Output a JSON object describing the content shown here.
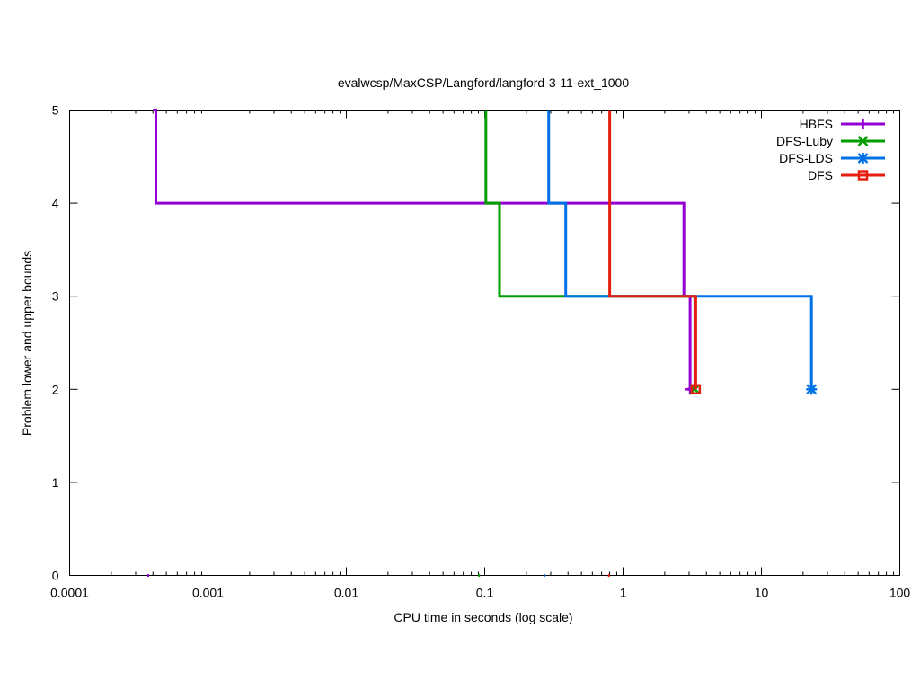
{
  "chart_data": {
    "type": "line",
    "title": "evalwcsp/MaxCSP/Langford/langford-3-11-ext_1000",
    "xlabel": "CPU time in seconds (log scale)",
    "ylabel": "Problem lower and upper bounds",
    "x_scale": "log",
    "xlim": [
      0.0001,
      100
    ],
    "ylim": [
      0,
      5
    ],
    "x_ticks": [
      {
        "value": 0.0001,
        "label": "0.0001"
      },
      {
        "value": 0.001,
        "label": "0.001"
      },
      {
        "value": 0.01,
        "label": "0.01"
      },
      {
        "value": 0.1,
        "label": "0.1"
      },
      {
        "value": 1,
        "label": "1"
      },
      {
        "value": 10,
        "label": "10"
      },
      {
        "value": 100,
        "label": "100"
      }
    ],
    "y_ticks": [
      {
        "value": 0,
        "label": "0"
      },
      {
        "value": 1,
        "label": "1"
      },
      {
        "value": 2,
        "label": "2"
      },
      {
        "value": 3,
        "label": "3"
      },
      {
        "value": 4,
        "label": "4"
      },
      {
        "value": 5,
        "label": "5"
      }
    ],
    "grid": false,
    "legend_position": "top-right",
    "series": [
      {
        "name": "HBFS",
        "color": "#9400d3",
        "marker": "plus",
        "upper_bound": [
          [
            0.0004,
            5
          ],
          [
            0.00042,
            5
          ],
          [
            0.00042,
            4
          ],
          [
            2.75,
            4
          ],
          [
            2.75,
            3
          ],
          [
            3.05,
            3
          ],
          [
            3.05,
            2
          ],
          [
            2.9,
            2
          ]
        ],
        "lower_bound_x": 0.00037,
        "end_point": [
          3.05,
          2
        ]
      },
      {
        "name": "DFS-Luby",
        "color": "#009e00",
        "marker": "cross",
        "upper_bound": [
          [
            0.102,
            5
          ],
          [
            0.102,
            4
          ],
          [
            0.128,
            4
          ],
          [
            0.128,
            3
          ],
          [
            3.3,
            3
          ],
          [
            3.3,
            2
          ]
        ],
        "lower_bound_x": 0.091,
        "end_point": [
          3.3,
          2
        ]
      },
      {
        "name": "DFS-LDS",
        "color": "#0072e6",
        "marker": "star",
        "upper_bound": [
          [
            0.29,
            5
          ],
          [
            0.29,
            4
          ],
          [
            0.385,
            4
          ],
          [
            0.385,
            3
          ],
          [
            23,
            3
          ],
          [
            23,
            2
          ]
        ],
        "lower_bound_x": 0.27,
        "end_point": [
          23,
          2
        ]
      },
      {
        "name": "DFS",
        "color": "#e51e10",
        "marker": "square",
        "upper_bound": [
          [
            0.8,
            5
          ],
          [
            0.8,
            4
          ],
          [
            0.8,
            3
          ],
          [
            3.35,
            3
          ],
          [
            3.35,
            2
          ]
        ],
        "lower_bound_x": 0.79,
        "end_point": [
          3.35,
          2
        ]
      }
    ]
  }
}
